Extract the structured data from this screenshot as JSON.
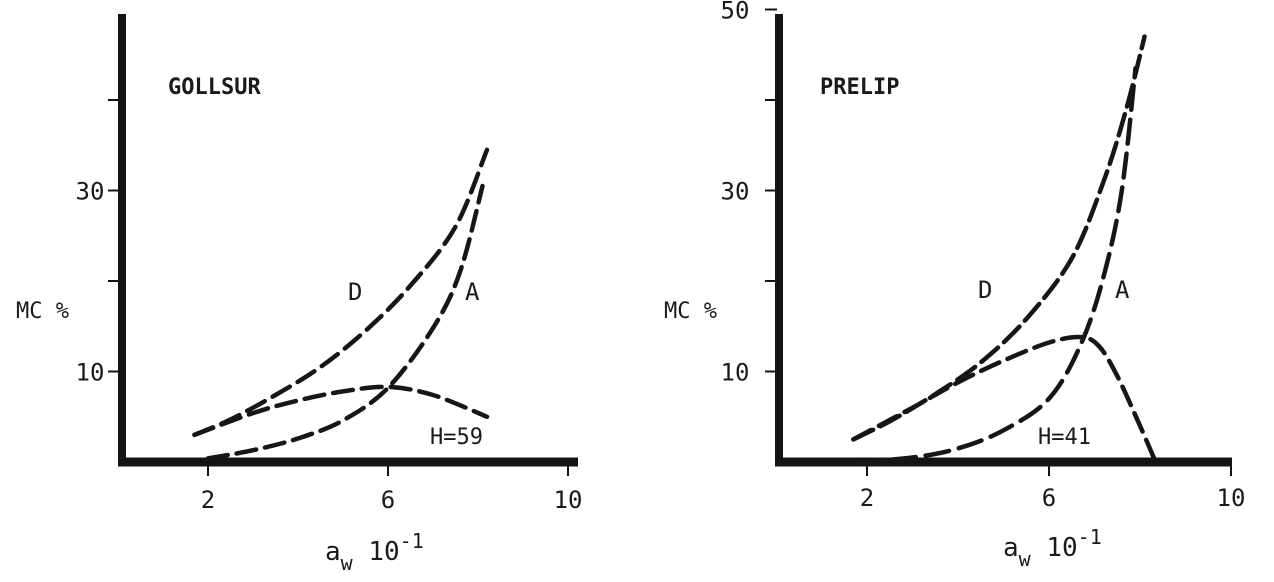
{
  "chart_data": [
    {
      "type": "line",
      "title": "GOLLSUR",
      "xlabel_base": "a",
      "xlabel_sub": "w",
      "xlabel_rest": " 10",
      "xlabel_exp": "-1",
      "ylabel": "MC %",
      "x_ticks": [
        2,
        6,
        10
      ],
      "y_ticks_labeled": [
        10,
        30
      ],
      "y_ticks_unlabeled": [
        20,
        40
      ],
      "xlim": [
        0,
        10
      ],
      "ylim": [
        0,
        45
      ],
      "annotation": "H=59",
      "series": [
        {
          "name": "D",
          "x": [
            1.7,
            2.5,
            3.5,
            4.5,
            5.5,
            6.5,
            7.5,
            8.2
          ],
          "y": [
            3.0,
            4.7,
            7.4,
            10.5,
            14.5,
            19.5,
            26.0,
            34.5
          ]
        },
        {
          "name": "A",
          "x": [
            2.0,
            3.0,
            4.0,
            5.0,
            6.0,
            7.0,
            7.6,
            8.1
          ],
          "y": [
            0.4,
            1.3,
            2.6,
            4.6,
            8.2,
            14.8,
            21.0,
            30.5
          ]
        },
        {
          "name": "",
          "x": [
            1.7,
            3.0,
            4.0,
            5.0,
            6.0,
            7.0,
            8.2
          ],
          "y": [
            3.0,
            5.4,
            6.8,
            7.8,
            8.3,
            7.4,
            5.0
          ]
        }
      ]
    },
    {
      "type": "line",
      "title": "PRELIP",
      "xlabel_base": "a",
      "xlabel_sub": "w",
      "xlabel_rest": " 10",
      "xlabel_exp": "-1",
      "ylabel": "MC %",
      "x_ticks": [
        2,
        6,
        10
      ],
      "y_ticks_labeled": [
        10,
        30,
        50
      ],
      "y_ticks_unlabeled": [
        20,
        40
      ],
      "xlim": [
        0,
        10
      ],
      "ylim": [
        0,
        50
      ],
      "annotation": "H=41",
      "series": [
        {
          "name": "D",
          "x": [
            1.7,
            2.5,
            3.5,
            4.5,
            5.5,
            6.5,
            7.2,
            7.7,
            8.1
          ],
          "y": [
            2.5,
            4.5,
            7.5,
            11.0,
            15.8,
            22.5,
            31.0,
            39.0,
            47.0
          ]
        },
        {
          "name": "A",
          "x": [
            1.8,
            3.0,
            4.0,
            5.0,
            6.0,
            6.7,
            7.2,
            7.6,
            7.9
          ],
          "y": [
            0.0,
            0.5,
            1.5,
            3.5,
            7.0,
            13.0,
            20.5,
            30.0,
            43.5
          ]
        },
        {
          "name": "",
          "x": [
            1.7,
            3.0,
            4.0,
            5.0,
            6.0,
            6.7,
            7.1,
            7.5,
            8.0,
            8.3
          ],
          "y": [
            2.5,
            6.0,
            8.8,
            11.2,
            13.2,
            13.8,
            12.8,
            9.5,
            4.0,
            0.5
          ]
        }
      ]
    }
  ]
}
